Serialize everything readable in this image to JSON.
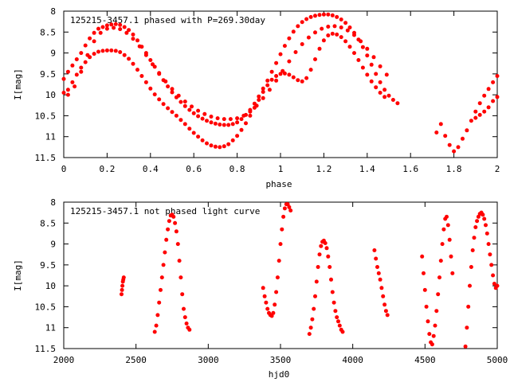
{
  "chart_data": [
    {
      "type": "scatter",
      "title": "125215-3457.1 phased with P=269.30day",
      "xlabel": "phase",
      "ylabel": "I[mag]",
      "xlim": [
        0,
        2
      ],
      "ylim": [
        11.5,
        8
      ],
      "y_inverted": true,
      "xticks": [
        0,
        0.2,
        0.4,
        0.6,
        0.8,
        1,
        1.2,
        1.4,
        1.6,
        1.8,
        2
      ],
      "xtick_labels": [
        "0",
        "0.2",
        "0.4",
        "0.6",
        "0.8",
        "1",
        "1.2",
        "1.4",
        "1.6",
        "1.8",
        "2"
      ],
      "yticks": [
        8,
        8.5,
        9,
        9.5,
        10,
        10.5,
        11,
        11.5
      ],
      "ytick_labels": [
        "8",
        "8.5",
        "9",
        "9.5",
        "10",
        "10.5",
        "11",
        "11.5"
      ],
      "grid": false,
      "marker_color": "#ff0000",
      "series": [
        {
          "x": [
            0.0,
            0.02,
            0.04,
            0.06,
            0.08,
            0.1,
            0.12,
            0.14,
            0.16,
            0.18,
            0.2,
            0.22,
            0.24,
            0.26,
            0.28,
            0.3,
            0.32,
            0.34,
            0.36,
            0.38,
            0.4,
            0.42,
            0.44,
            0.46,
            0.48,
            0.5,
            0.52,
            0.54,
            0.56,
            0.58,
            0.6,
            0.62,
            0.64,
            0.66,
            0.68,
            0.7,
            0.72,
            0.74,
            0.76,
            0.78,
            0.8,
            0.82,
            0.84,
            0.86,
            0.88,
            0.9,
            0.92,
            0.94,
            0.96,
            0.98,
            1.0,
            1.02,
            1.04,
            1.06,
            1.08,
            1.1,
            1.12,
            1.14,
            1.16,
            1.18,
            1.2,
            1.22,
            1.24,
            1.26,
            1.28,
            1.3,
            1.32,
            1.34,
            1.36,
            1.38,
            1.4,
            1.42,
            1.44,
            1.46,
            1.48,
            1.5,
            1.52,
            1.54,
            1.72,
            1.74,
            1.76,
            1.78,
            1.8,
            1.82,
            1.84,
            1.86,
            1.88,
            1.9,
            1.92,
            1.94,
            1.96,
            1.98,
            2.0
          ],
          "y": [
            9.62,
            9.45,
            9.3,
            9.15,
            9.0,
            8.82,
            8.65,
            8.52,
            8.42,
            8.38,
            8.34,
            8.32,
            8.31,
            8.33,
            8.38,
            8.45,
            8.56,
            8.7,
            8.85,
            9.0,
            9.17,
            9.33,
            9.5,
            9.65,
            9.8,
            9.94,
            10.06,
            10.17,
            10.27,
            10.36,
            10.44,
            10.51,
            10.57,
            10.62,
            10.66,
            10.69,
            10.71,
            10.72,
            10.72,
            10.7,
            10.66,
            10.58,
            10.48,
            10.36,
            10.21,
            10.04,
            9.85,
            9.66,
            9.45,
            9.24,
            9.03,
            8.83,
            8.65,
            8.49,
            8.36,
            8.26,
            8.19,
            8.14,
            8.11,
            8.09,
            8.08,
            8.08,
            8.1,
            8.14,
            8.2,
            8.28,
            8.39,
            8.52,
            8.68,
            8.86,
            9.06,
            9.28,
            9.5,
            9.7,
            9.88,
            10.02,
            10.12,
            10.2,
            10.9,
            10.7,
            10.98,
            11.2,
            11.35,
            11.25,
            11.05,
            10.85,
            10.62,
            10.4,
            10.2,
            10.02,
            9.86,
            9.7,
            9.55
          ]
        },
        {
          "x": [
            0.0,
            0.02,
            0.04,
            0.06,
            0.08,
            0.1,
            0.12,
            0.14,
            0.16,
            0.18,
            0.2,
            0.22,
            0.24,
            0.26,
            0.28,
            0.3,
            0.32,
            0.34,
            0.36,
            0.38,
            0.4,
            0.42,
            0.44,
            0.46,
            0.48,
            0.5,
            0.52,
            0.54,
            0.56,
            0.58,
            0.6,
            0.62,
            0.64,
            0.66,
            0.68,
            0.7,
            0.72,
            0.74,
            0.76,
            0.78,
            0.8,
            0.82,
            0.84,
            0.86,
            0.88,
            0.9,
            0.92,
            0.94,
            0.96,
            0.98,
            1.0,
            1.02,
            1.04,
            1.06,
            1.08,
            1.1,
            1.12,
            1.14,
            1.16,
            1.18,
            1.2,
            1.22,
            1.24,
            1.26,
            1.28,
            1.3,
            1.32,
            1.34,
            1.36,
            1.38,
            1.4,
            1.42,
            1.44,
            1.46,
            1.48,
            1.9,
            1.92,
            1.94,
            1.96,
            1.98,
            2.0
          ],
          "y": [
            9.95,
            9.88,
            9.7,
            9.52,
            9.35,
            9.22,
            9.1,
            9.02,
            8.97,
            8.95,
            8.94,
            8.94,
            8.95,
            8.98,
            9.05,
            9.14,
            9.26,
            9.4,
            9.55,
            9.7,
            9.85,
            9.99,
            10.11,
            10.22,
            10.32,
            10.41,
            10.5,
            10.6,
            10.7,
            10.81,
            10.91,
            11.0,
            11.09,
            11.16,
            11.21,
            11.24,
            11.25,
            11.23,
            11.18,
            11.09,
            10.98,
            10.84,
            10.68,
            10.5,
            10.31,
            10.12,
            9.93,
            9.77,
            9.64,
            9.55,
            9.5,
            9.49,
            9.52,
            9.58,
            9.65,
            9.68,
            9.6,
            9.4,
            9.15,
            8.9,
            8.7,
            8.58,
            8.54,
            8.56,
            8.62,
            8.72,
            8.85,
            9.0,
            9.17,
            9.35,
            9.52,
            9.68,
            9.82,
            9.95,
            10.05,
            10.55,
            10.48,
            10.4,
            10.3,
            10.15,
            10.05
          ]
        },
        {
          "x": [
            0.02,
            0.05,
            0.08,
            0.11,
            0.14,
            0.17,
            0.2,
            0.23,
            0.26,
            0.29,
            0.32,
            0.35,
            0.38,
            0.41,
            0.44,
            0.47,
            0.5,
            0.53,
            0.56,
            0.59,
            0.62,
            0.65,
            0.68,
            0.71,
            0.74,
            0.77,
            0.8,
            0.83,
            0.86,
            0.89,
            0.92,
            0.95,
            0.98,
            1.01,
            1.04,
            1.07,
            1.1,
            1.13,
            1.16,
            1.19,
            1.22,
            1.25,
            1.28,
            1.31,
            1.34,
            1.37,
            1.4,
            1.43,
            1.46,
            1.49
          ],
          "y": [
            10.0,
            9.8,
            9.45,
            9.05,
            8.72,
            8.52,
            8.42,
            8.4,
            8.43,
            8.52,
            8.66,
            8.84,
            9.05,
            9.27,
            9.48,
            9.68,
            9.86,
            10.02,
            10.16,
            10.28,
            10.38,
            10.46,
            10.52,
            10.56,
            10.58,
            10.58,
            10.56,
            10.5,
            10.4,
            10.26,
            10.08,
            9.88,
            9.66,
            9.43,
            9.2,
            8.98,
            8.79,
            8.63,
            8.51,
            8.42,
            8.37,
            8.36,
            8.39,
            8.46,
            8.57,
            8.72,
            8.9,
            9.1,
            9.32,
            9.52
          ]
        }
      ]
    },
    {
      "type": "scatter",
      "title": "125215-3457.1 not phased light curve",
      "xlabel": "hjd0",
      "ylabel": "I[mag]",
      "xlim": [
        2000,
        5000
      ],
      "ylim": [
        11.5,
        8
      ],
      "y_inverted": true,
      "xticks": [
        2000,
        2500,
        3000,
        3500,
        4000,
        4500,
        5000
      ],
      "xtick_labels": [
        "2000",
        "2500",
        "3000",
        "3500",
        "4000",
        "4500",
        "5000"
      ],
      "yticks": [
        8,
        8.5,
        9,
        9.5,
        10,
        10.5,
        11,
        11.5
      ],
      "ytick_labels": [
        "8",
        "8.5",
        "9",
        "9.5",
        "10",
        "10.5",
        "11",
        "11.5"
      ],
      "grid": false,
      "marker_color": "#ff0000",
      "series": [
        {
          "x": [
            2400,
            2403,
            2406,
            2409,
            2412,
            2415,
            2630,
            2640,
            2650,
            2660,
            2670,
            2680,
            2690,
            2700,
            2710,
            2720,
            2730,
            2740,
            2750,
            2760,
            2770,
            2780,
            2790,
            2800,
            2810,
            2820,
            2830,
            2840,
            2850,
            2860,
            2870,
            3380,
            3390,
            3400,
            3410,
            3420,
            3430,
            3440,
            3450,
            3460,
            3470,
            3480,
            3490,
            3500,
            3510,
            3520,
            3530,
            3540,
            3550,
            3560,
            3570,
            3700,
            3710,
            3720,
            3730,
            3740,
            3750,
            3760,
            3770,
            3780,
            3790,
            3800,
            3810,
            3820,
            3830,
            3840,
            3850,
            3860,
            3870,
            3880,
            3890,
            3900,
            3910,
            3920,
            3930,
            4150,
            4160,
            4170,
            4180,
            4190,
            4200,
            4210,
            4220,
            4230,
            4240,
            4480,
            4490,
            4500,
            4510,
            4520,
            4530,
            4540,
            4550,
            4560,
            4570,
            4580,
            4590,
            4600,
            4610,
            4620,
            4630,
            4640,
            4650,
            4660,
            4670,
            4680,
            4690,
            4780,
            4790,
            4800,
            4810,
            4820,
            4830,
            4840,
            4850,
            4860,
            4870,
            4880,
            4890,
            4900,
            4910,
            4920,
            4930,
            4940,
            4950,
            4960,
            4970,
            4980,
            4990,
            5000
          ],
          "y": [
            10.2,
            10.1,
            10.0,
            9.9,
            9.85,
            9.8,
            11.1,
            10.95,
            10.7,
            10.4,
            10.1,
            9.8,
            9.5,
            9.2,
            8.9,
            8.65,
            8.45,
            8.32,
            8.3,
            8.35,
            8.5,
            8.7,
            9.0,
            9.4,
            9.8,
            10.2,
            10.55,
            10.75,
            10.9,
            11.0,
            11.05,
            10.05,
            10.25,
            10.4,
            10.55,
            10.65,
            10.7,
            10.72,
            10.65,
            10.45,
            10.15,
            9.8,
            9.4,
            9.0,
            8.65,
            8.35,
            8.15,
            8.05,
            8.05,
            8.12,
            8.2,
            11.15,
            11.0,
            10.8,
            10.55,
            10.25,
            9.9,
            9.55,
            9.25,
            9.05,
            8.95,
            8.92,
            8.98,
            9.1,
            9.3,
            9.55,
            9.85,
            10.15,
            10.4,
            10.6,
            10.75,
            10.85,
            10.95,
            11.05,
            11.1,
            9.15,
            9.35,
            9.55,
            9.7,
            9.85,
            10.05,
            10.25,
            10.45,
            10.6,
            10.7,
            9.3,
            9.7,
            10.1,
            10.5,
            10.85,
            11.15,
            11.35,
            11.4,
            11.2,
            10.95,
            10.6,
            10.2,
            9.8,
            9.4,
            9.0,
            8.65,
            8.4,
            8.35,
            8.55,
            8.9,
            9.3,
            9.7,
            11.45,
            11.0,
            10.5,
            10.0,
            9.55,
            9.15,
            8.85,
            8.6,
            8.45,
            8.35,
            8.28,
            8.25,
            8.3,
            8.4,
            8.55,
            8.75,
            9.0,
            9.25,
            9.5,
            9.75,
            9.95,
            10.05,
            10.0
          ]
        }
      ]
    }
  ]
}
